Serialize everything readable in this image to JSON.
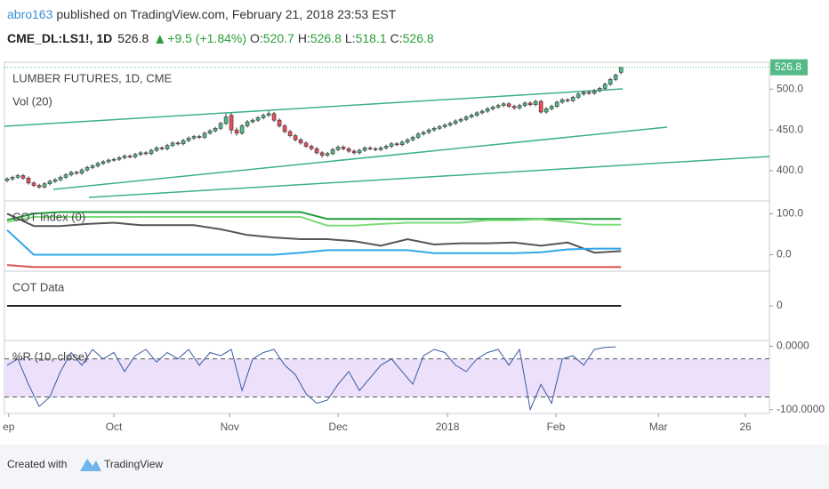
{
  "header": {
    "author": "abro163",
    "published": "published on TradingView.com, February 21, 2018 23:53 EST",
    "symbol": "CME_DL:LS1!, 1D",
    "change": "+9.5 (+1.84%)",
    "o": "O:",
    "h": "H:",
    "l": "L:",
    "c": "C:"
  },
  "footer": {
    "created": "Created with",
    "brand": "TradingView"
  },
  "chart_data": [
    {
      "type": "candlestick",
      "title": "LUMBER FUTURES, 1D, CME",
      "subtitle": "Vol (20)",
      "up_color": "#53b987",
      "down_color": "#eb4d5c",
      "last_color": "#53b987",
      "open": [
        388,
        390,
        392,
        394,
        391,
        385,
        382,
        380,
        384,
        387,
        389,
        392,
        395,
        398,
        397,
        401,
        404,
        406,
        409,
        411,
        413,
        414,
        416,
        418,
        417,
        420,
        422,
        421,
        425,
        428,
        427,
        431,
        434,
        433,
        437,
        440,
        442,
        441,
        446,
        449,
        452,
        458,
        468,
        450,
        446,
        455,
        460,
        462,
        465,
        468,
        470,
        462,
        455,
        448,
        443,
        438,
        434,
        430,
        427,
        422,
        419,
        421,
        426,
        429,
        427,
        424,
        422,
        425,
        428,
        427,
        426,
        428,
        430,
        433,
        432,
        435,
        438,
        441,
        445,
        447,
        450,
        452,
        454,
        456,
        458,
        461,
        463,
        466,
        468,
        471,
        473,
        476,
        478,
        480,
        482,
        479,
        477,
        480,
        483,
        481,
        485,
        472,
        476,
        479,
        484,
        487,
        486,
        490,
        494,
        496,
        495,
        498,
        501,
        506,
        512,
        520.7
      ],
      "high": [
        392,
        394,
        396,
        396,
        393,
        387,
        384,
        386,
        389,
        391,
        394,
        397,
        400,
        400,
        403,
        406,
        408,
        411,
        413,
        415,
        416,
        418,
        420,
        420,
        422,
        424,
        424,
        427,
        430,
        430,
        433,
        436,
        436,
        439,
        442,
        444,
        444,
        448,
        451,
        454,
        460,
        470,
        471,
        453,
        457,
        462,
        464,
        467,
        470,
        473,
        472,
        464,
        457,
        450,
        445,
        440,
        436,
        432,
        429,
        424,
        423,
        428,
        431,
        431,
        429,
        426,
        427,
        430,
        430,
        429,
        430,
        432,
        435,
        435,
        437,
        440,
        443,
        447,
        449,
        452,
        454,
        456,
        458,
        460,
        463,
        465,
        468,
        470,
        473,
        475,
        478,
        480,
        482,
        484,
        484,
        481,
        482,
        485,
        485,
        487,
        487,
        478,
        481,
        486,
        489,
        489,
        492,
        496,
        498,
        498,
        500,
        503,
        508,
        514,
        519,
        526.8
      ],
      "low": [
        386,
        388,
        390,
        389,
        383,
        380,
        378,
        378,
        382,
        385,
        387,
        390,
        393,
        395,
        395,
        399,
        402,
        404,
        407,
        409,
        411,
        412,
        414,
        415,
        415,
        418,
        419,
        419,
        423,
        425,
        425,
        429,
        431,
        431,
        435,
        438,
        439,
        439,
        444,
        447,
        450,
        456,
        445,
        443,
        444,
        453,
        458,
        460,
        463,
        466,
        460,
        453,
        446,
        441,
        436,
        432,
        428,
        425,
        420,
        416,
        417,
        419,
        424,
        425,
        422,
        420,
        420,
        423,
        425,
        424,
        424,
        426,
        428,
        430,
        430,
        433,
        436,
        439,
        443,
        445,
        448,
        450,
        452,
        454,
        456,
        459,
        461,
        464,
        466,
        469,
        471,
        474,
        476,
        478,
        477,
        475,
        475,
        478,
        479,
        479,
        470,
        470,
        474,
        477,
        482,
        484,
        484,
        488,
        492,
        493,
        493,
        496,
        499,
        504,
        510,
        518.1
      ],
      "close": [
        390,
        392,
        394,
        391,
        385,
        382,
        380,
        384,
        387,
        389,
        392,
        395,
        398,
        397,
        401,
        404,
        406,
        409,
        411,
        413,
        414,
        416,
        418,
        417,
        420,
        422,
        421,
        425,
        428,
        427,
        431,
        434,
        433,
        437,
        440,
        442,
        441,
        446,
        449,
        452,
        458,
        466,
        450,
        446,
        455,
        460,
        462,
        465,
        468,
        470,
        462,
        455,
        448,
        443,
        438,
        434,
        430,
        427,
        422,
        419,
        421,
        426,
        429,
        427,
        424,
        422,
        425,
        428,
        427,
        426,
        428,
        430,
        433,
        432,
        435,
        438,
        441,
        445,
        447,
        450,
        452,
        454,
        456,
        458,
        461,
        463,
        466,
        468,
        471,
        473,
        476,
        478,
        480,
        482,
        479,
        477,
        480,
        483,
        481,
        485,
        472,
        476,
        479,
        484,
        487,
        486,
        490,
        494,
        496,
        495,
        498,
        501,
        506,
        512,
        517.3,
        526.8
      ],
      "ylim": [
        363,
        533
      ],
      "yticks": [
        {
          "value": 400,
          "label": "400.0"
        },
        {
          "value": 450,
          "label": "450.0"
        },
        {
          "value": 500,
          "label": "500.0"
        }
      ],
      "xlim": [
        -0.5,
        142.8
      ],
      "xticks": [
        {
          "value": 0.3,
          "label": "ep"
        },
        {
          "value": 20,
          "label": "Oct"
        },
        {
          "value": 41.7,
          "label": "Nov"
        },
        {
          "value": 62,
          "label": "Dec"
        },
        {
          "value": 82.5,
          "label": "2018"
        },
        {
          "value": 102.8,
          "label": "Feb"
        },
        {
          "value": 122,
          "label": "Mar"
        },
        {
          "value": 138.3,
          "label": "26"
        }
      ]
    },
    {
      "type": "line",
      "title": "COT Index (0)",
      "x": [
        0,
        5,
        10,
        15,
        20,
        25,
        30,
        35,
        40,
        45,
        50,
        55,
        60,
        65,
        70,
        75,
        80,
        85,
        90,
        95,
        100,
        105,
        110,
        115
      ],
      "series": [
        {
          "color": "#1f9e3a",
          "values": [
            85,
            100,
            104,
            104,
            104,
            104,
            104,
            104,
            104,
            104,
            104,
            104,
            87,
            87,
            87,
            87,
            87,
            87,
            87,
            87,
            87,
            87,
            87,
            87
          ]
        },
        {
          "color": "#7fdc7a",
          "values": [
            80,
            92,
            92,
            92,
            92,
            92,
            92,
            92,
            92,
            92,
            92,
            92,
            71,
            71,
            75,
            78,
            78,
            78,
            84,
            84,
            86,
            80,
            73,
            73
          ]
        },
        {
          "color": "#555555",
          "values": [
            100,
            70,
            70,
            75,
            78,
            72,
            72,
            72,
            62,
            48,
            42,
            38,
            38,
            33,
            22,
            38,
            25,
            28,
            28,
            30,
            22,
            30,
            5,
            9
          ]
        },
        {
          "color": "#2ea7e8",
          "values": [
            60,
            0,
            0,
            0,
            0,
            0,
            0,
            0,
            0,
            0,
            0,
            5,
            11,
            11,
            11,
            11,
            4,
            4,
            4,
            4,
            6,
            13,
            15,
            15
          ]
        },
        {
          "color": "#d9534f",
          "values": [
            -25,
            -30,
            -30,
            -30,
            -30,
            -30,
            -30,
            -30,
            -30,
            -30,
            -30,
            -30,
            -30,
            -30,
            -30,
            -30,
            -30,
            -30,
            -30,
            -30,
            -30,
            -30,
            -30,
            -30
          ]
        }
      ],
      "ylim": [
        -40,
        131
      ],
      "yticks": [
        {
          "value": 0,
          "label": "0.0"
        },
        {
          "value": 100,
          "label": "100.0"
        }
      ]
    },
    {
      "type": "line",
      "title": "COT Data",
      "x": [
        0,
        115
      ],
      "series": [
        {
          "color": "#2ea7e8",
          "values": [
            0,
            0
          ]
        },
        {
          "color": "#222222",
          "values": [
            0,
            0
          ]
        }
      ],
      "ylim": [
        -1,
        1
      ],
      "yticks": [
        0
      ]
    },
    {
      "type": "line",
      "title": "%R (10, close)",
      "x": [
        0,
        2,
        4,
        6,
        8,
        10,
        12,
        14,
        16,
        18,
        20,
        22,
        24,
        26,
        28,
        30,
        32,
        34,
        36,
        38,
        40,
        42,
        44,
        46,
        48,
        50,
        52,
        54,
        56,
        58,
        60,
        62,
        64,
        66,
        68,
        70,
        72,
        74,
        76,
        78,
        80,
        82,
        84,
        86,
        88,
        90,
        92,
        94,
        96,
        98,
        100,
        102,
        104,
        106,
        108,
        110,
        112,
        114
      ],
      "series": [
        {
          "color": "#3a5ba0",
          "values": [
            -30,
            -20,
            -60,
            -95,
            -80,
            -40,
            -10,
            -30,
            -5,
            -20,
            -10,
            -40,
            -15,
            -5,
            -25,
            -10,
            -20,
            -5,
            -30,
            -10,
            -15,
            -5,
            -70,
            -20,
            -10,
            -5,
            -30,
            -45,
            -75,
            -90,
            -85,
            -60,
            -40,
            -70,
            -50,
            -30,
            -20,
            -40,
            -60,
            -15,
            -5,
            -10,
            -30,
            -40,
            -20,
            -10,
            -5,
            -30,
            -5,
            -100,
            -60,
            -90,
            -20,
            -15,
            -30,
            -5,
            -2,
            -1
          ]
        }
      ],
      "bands": [
        -80,
        -20
      ],
      "band_color": "#ece0fb",
      "ylim": [
        -106,
        9
      ],
      "yticks": [
        {
          "value": 0,
          "label": "0.0000"
        },
        {
          "value": -100,
          "label": "-100.0000"
        }
      ]
    }
  ]
}
